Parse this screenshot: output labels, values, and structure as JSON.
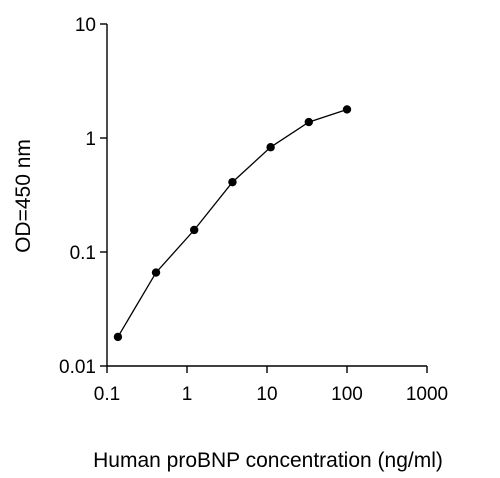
{
  "chart_data": {
    "type": "line",
    "title": "",
    "xlabel": "Human proBNP concentration (ng/ml)",
    "ylabel": "OD=450 nm",
    "x_scale": "log",
    "y_scale": "log",
    "xlim": [
      0.1,
      1000
    ],
    "ylim": [
      0.01,
      10
    ],
    "x_ticks": [
      0.1,
      1,
      10,
      100,
      1000
    ],
    "x_tick_labels": [
      "0.1",
      "1",
      "10",
      "100",
      "1000"
    ],
    "y_ticks": [
      0.01,
      0.1,
      1,
      10
    ],
    "y_tick_labels": [
      "0.01",
      "0.1",
      "1",
      "10"
    ],
    "grid": false,
    "legend": "none",
    "colors": {
      "line": "#000000",
      "marker": "#000000",
      "axis": "#000000"
    },
    "series": [
      {
        "x": [
          0.137,
          0.41,
          1.23,
          3.7,
          11.1,
          33.3,
          100
        ],
        "y": [
          0.018,
          0.066,
          0.156,
          0.41,
          0.83,
          1.38,
          1.78
        ]
      }
    ]
  }
}
